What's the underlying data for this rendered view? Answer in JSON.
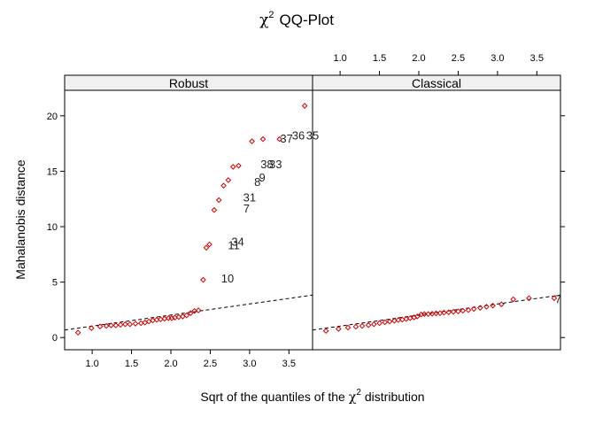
{
  "chart_data": {
    "type": "scatter",
    "title_main": "QQ-Plot",
    "title_symbol": "χ",
    "title_superscript": "2",
    "xlabel_prefix": "Sqrt of the quantiles of the",
    "xlabel_symbol": "χ",
    "xlabel_superscript": "2",
    "xlabel_suffix": "distribution",
    "ylabel": "Mahalanobis distance",
    "xlim": [
      0.65,
      3.8
    ],
    "ylim": [
      -1.1,
      22.3
    ],
    "x_ticks": [
      1.0,
      1.5,
      2.0,
      2.5,
      3.0,
      3.5
    ],
    "x_tick_labels": [
      "1.0",
      "1.5",
      "2.0",
      "2.5",
      "3.0",
      "3.5"
    ],
    "y_ticks": [
      0,
      5,
      10,
      15,
      20
    ],
    "y_tick_labels": [
      "0",
      "5",
      "10",
      "15",
      "20"
    ],
    "grid": false,
    "point_color": "#cc0000",
    "reference_line": {
      "style": "dashed",
      "intercept": 0.03,
      "slope": 1.0
    },
    "panels": [
      {
        "name": "Robust",
        "points": [
          [
            0.82,
            0.45
          ],
          [
            0.99,
            0.85
          ],
          [
            1.1,
            1.0
          ],
          [
            1.18,
            1.05
          ],
          [
            1.24,
            1.1
          ],
          [
            1.3,
            1.1
          ],
          [
            1.36,
            1.15
          ],
          [
            1.42,
            1.2
          ],
          [
            1.48,
            1.2
          ],
          [
            1.55,
            1.25
          ],
          [
            1.62,
            1.3
          ],
          [
            1.67,
            1.35
          ],
          [
            1.72,
            1.45
          ],
          [
            1.77,
            1.55
          ],
          [
            1.82,
            1.6
          ],
          [
            1.87,
            1.65
          ],
          [
            1.92,
            1.7
          ],
          [
            1.97,
            1.75
          ],
          [
            2.01,
            1.75
          ],
          [
            2.05,
            1.8
          ],
          [
            2.1,
            1.85
          ],
          [
            2.15,
            1.9
          ],
          [
            2.2,
            2.0
          ],
          [
            2.25,
            2.2
          ],
          [
            2.3,
            2.4
          ],
          [
            2.35,
            2.45
          ],
          [
            2.41,
            5.2
          ],
          [
            2.45,
            8.1
          ],
          [
            2.49,
            8.4
          ],
          [
            2.55,
            11.5
          ],
          [
            2.61,
            12.4
          ],
          [
            2.67,
            13.7
          ],
          [
            2.73,
            14.2
          ],
          [
            2.79,
            15.4
          ],
          [
            2.86,
            15.5
          ],
          [
            3.03,
            17.7
          ],
          [
            3.17,
            17.9
          ],
          [
            3.38,
            17.9
          ],
          [
            3.7,
            20.9
          ]
        ],
        "labels": [
          {
            "text": "10",
            "x": 2.72,
            "y": 5.3
          },
          {
            "text": "11",
            "x": 2.8,
            "y": 8.3
          },
          {
            "text": "34",
            "x": 2.85,
            "y": 8.6
          },
          {
            "text": "7",
            "x": 2.96,
            "y": 11.6
          },
          {
            "text": "31",
            "x": 3.0,
            "y": 12.6
          },
          {
            "text": "8",
            "x": 3.1,
            "y": 14.0
          },
          {
            "text": "9",
            "x": 3.16,
            "y": 14.4
          },
          {
            "text": "38",
            "x": 3.22,
            "y": 15.6
          },
          {
            "text": "33",
            "x": 3.33,
            "y": 15.6
          },
          {
            "text": "37",
            "x": 3.47,
            "y": 17.9
          },
          {
            "text": "36",
            "x": 3.62,
            "y": 18.2
          },
          {
            "text": "35",
            "x": 3.8,
            "y": 18.2
          }
        ]
      },
      {
        "name": "Classical",
        "points": [
          [
            0.82,
            0.6
          ],
          [
            0.98,
            0.78
          ],
          [
            1.1,
            0.9
          ],
          [
            1.2,
            0.98
          ],
          [
            1.28,
            1.05
          ],
          [
            1.36,
            1.12
          ],
          [
            1.43,
            1.2
          ],
          [
            1.5,
            1.3
          ],
          [
            1.57,
            1.38
          ],
          [
            1.63,
            1.45
          ],
          [
            1.69,
            1.52
          ],
          [
            1.74,
            1.58
          ],
          [
            1.79,
            1.62
          ],
          [
            1.84,
            1.68
          ],
          [
            1.89,
            1.75
          ],
          [
            1.94,
            1.82
          ],
          [
            1.98,
            1.9
          ],
          [
            2.03,
            2.08
          ],
          [
            2.07,
            2.12
          ],
          [
            2.12,
            2.12
          ],
          [
            2.17,
            2.15
          ],
          [
            2.22,
            2.18
          ],
          [
            2.27,
            2.2
          ],
          [
            2.32,
            2.25
          ],
          [
            2.38,
            2.28
          ],
          [
            2.44,
            2.32
          ],
          [
            2.5,
            2.36
          ],
          [
            2.56,
            2.42
          ],
          [
            2.63,
            2.48
          ],
          [
            2.7,
            2.58
          ],
          [
            2.78,
            2.68
          ],
          [
            2.86,
            2.78
          ],
          [
            2.94,
            2.88
          ],
          [
            3.05,
            3.0
          ],
          [
            3.2,
            3.45
          ],
          [
            3.4,
            3.55
          ],
          [
            3.72,
            3.55
          ]
        ],
        "labels": [
          {
            "text": "7",
            "x": 3.77,
            "y": 3.4
          }
        ]
      }
    ]
  }
}
